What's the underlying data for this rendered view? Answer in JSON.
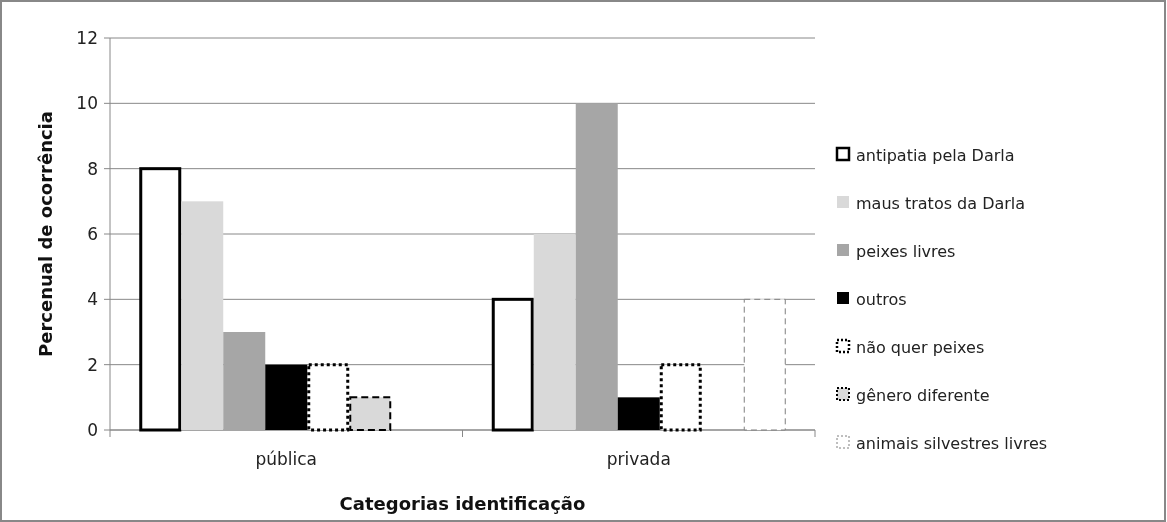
{
  "chart_data": {
    "type": "bar",
    "xlabel": "Categorias identificação",
    "ylabel": "Percenual de ocorrência",
    "categories": [
      "pública",
      "privada"
    ],
    "series": [
      {
        "name": "antipatia pela Darla",
        "color": "#ffffff",
        "line_style": "solid",
        "values": [
          8,
          4
        ]
      },
      {
        "name": "maus tratos da Darla",
        "color": "#d9d9d9",
        "values": [
          7,
          6
        ]
      },
      {
        "name": "peixes livres",
        "color": "#a6a6a6",
        "values": [
          3,
          10
        ]
      },
      {
        "name": "outros",
        "color": "#000000",
        "values": [
          2,
          1
        ]
      },
      {
        "name": "não quer peixes",
        "color": "#ffffff",
        "line_style": "dotted",
        "values": [
          2,
          2
        ]
      },
      {
        "name": "gênero diferente",
        "color": "#d9d9d9",
        "line_style": "dashed",
        "values": [
          1,
          0
        ]
      },
      {
        "name": "animais silvestres livres",
        "color": "#ffffff",
        "line_style": "dashed",
        "values": [
          0,
          4
        ]
      }
    ],
    "ylim": [
      0,
      12
    ],
    "yticks": [
      0,
      2,
      4,
      6,
      8,
      10,
      12
    ],
    "grid": "y",
    "legend": "right"
  }
}
